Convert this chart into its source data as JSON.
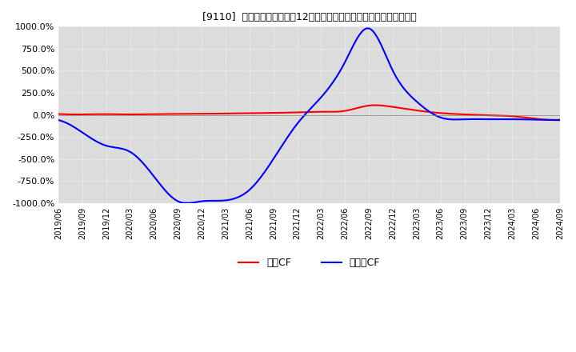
{
  "title": "[9110]  キャッシュフローの12か月移動合計の対前年同期増減率の推移",
  "ylim": [
    -1000,
    1000
  ],
  "yticks": [
    -1000,
    -750,
    -500,
    -250,
    0,
    250,
    500,
    750,
    1000
  ],
  "ytick_labels": [
    "-1000.0%",
    "-750.0%",
    "-500.0%",
    "-250.0%",
    "0.0%",
    "250.0%",
    "500.0%",
    "750.0%",
    "1000.0%"
  ],
  "legend_labels": [
    "営業CF",
    "フリーCF"
  ],
  "line_colors": [
    "#ff0000",
    "#0000ff"
  ],
  "background_color": "#dcdcdc",
  "dates": [
    "2019/06",
    "2019/09",
    "2019/12",
    "2020/03",
    "2020/06",
    "2020/09",
    "2020/12",
    "2021/03",
    "2021/06",
    "2021/09",
    "2021/12",
    "2022/03",
    "2022/06",
    "2022/09",
    "2022/12",
    "2023/03",
    "2023/06",
    "2023/09",
    "2023/12",
    "2024/03",
    "2024/06",
    "2024/09"
  ],
  "operating_cf": [
    10,
    5,
    8,
    5,
    8,
    10,
    12,
    15,
    18,
    22,
    28,
    35,
    45,
    105,
    90,
    50,
    20,
    5,
    -5,
    -15,
    -45,
    -55
  ],
  "free_cf": [
    -60,
    -200,
    -350,
    -420,
    -700,
    -980,
    -980,
    -970,
    -850,
    -500,
    -100,
    200,
    600,
    980,
    500,
    150,
    -30,
    -50,
    -50,
    -50,
    -55,
    -60
  ]
}
